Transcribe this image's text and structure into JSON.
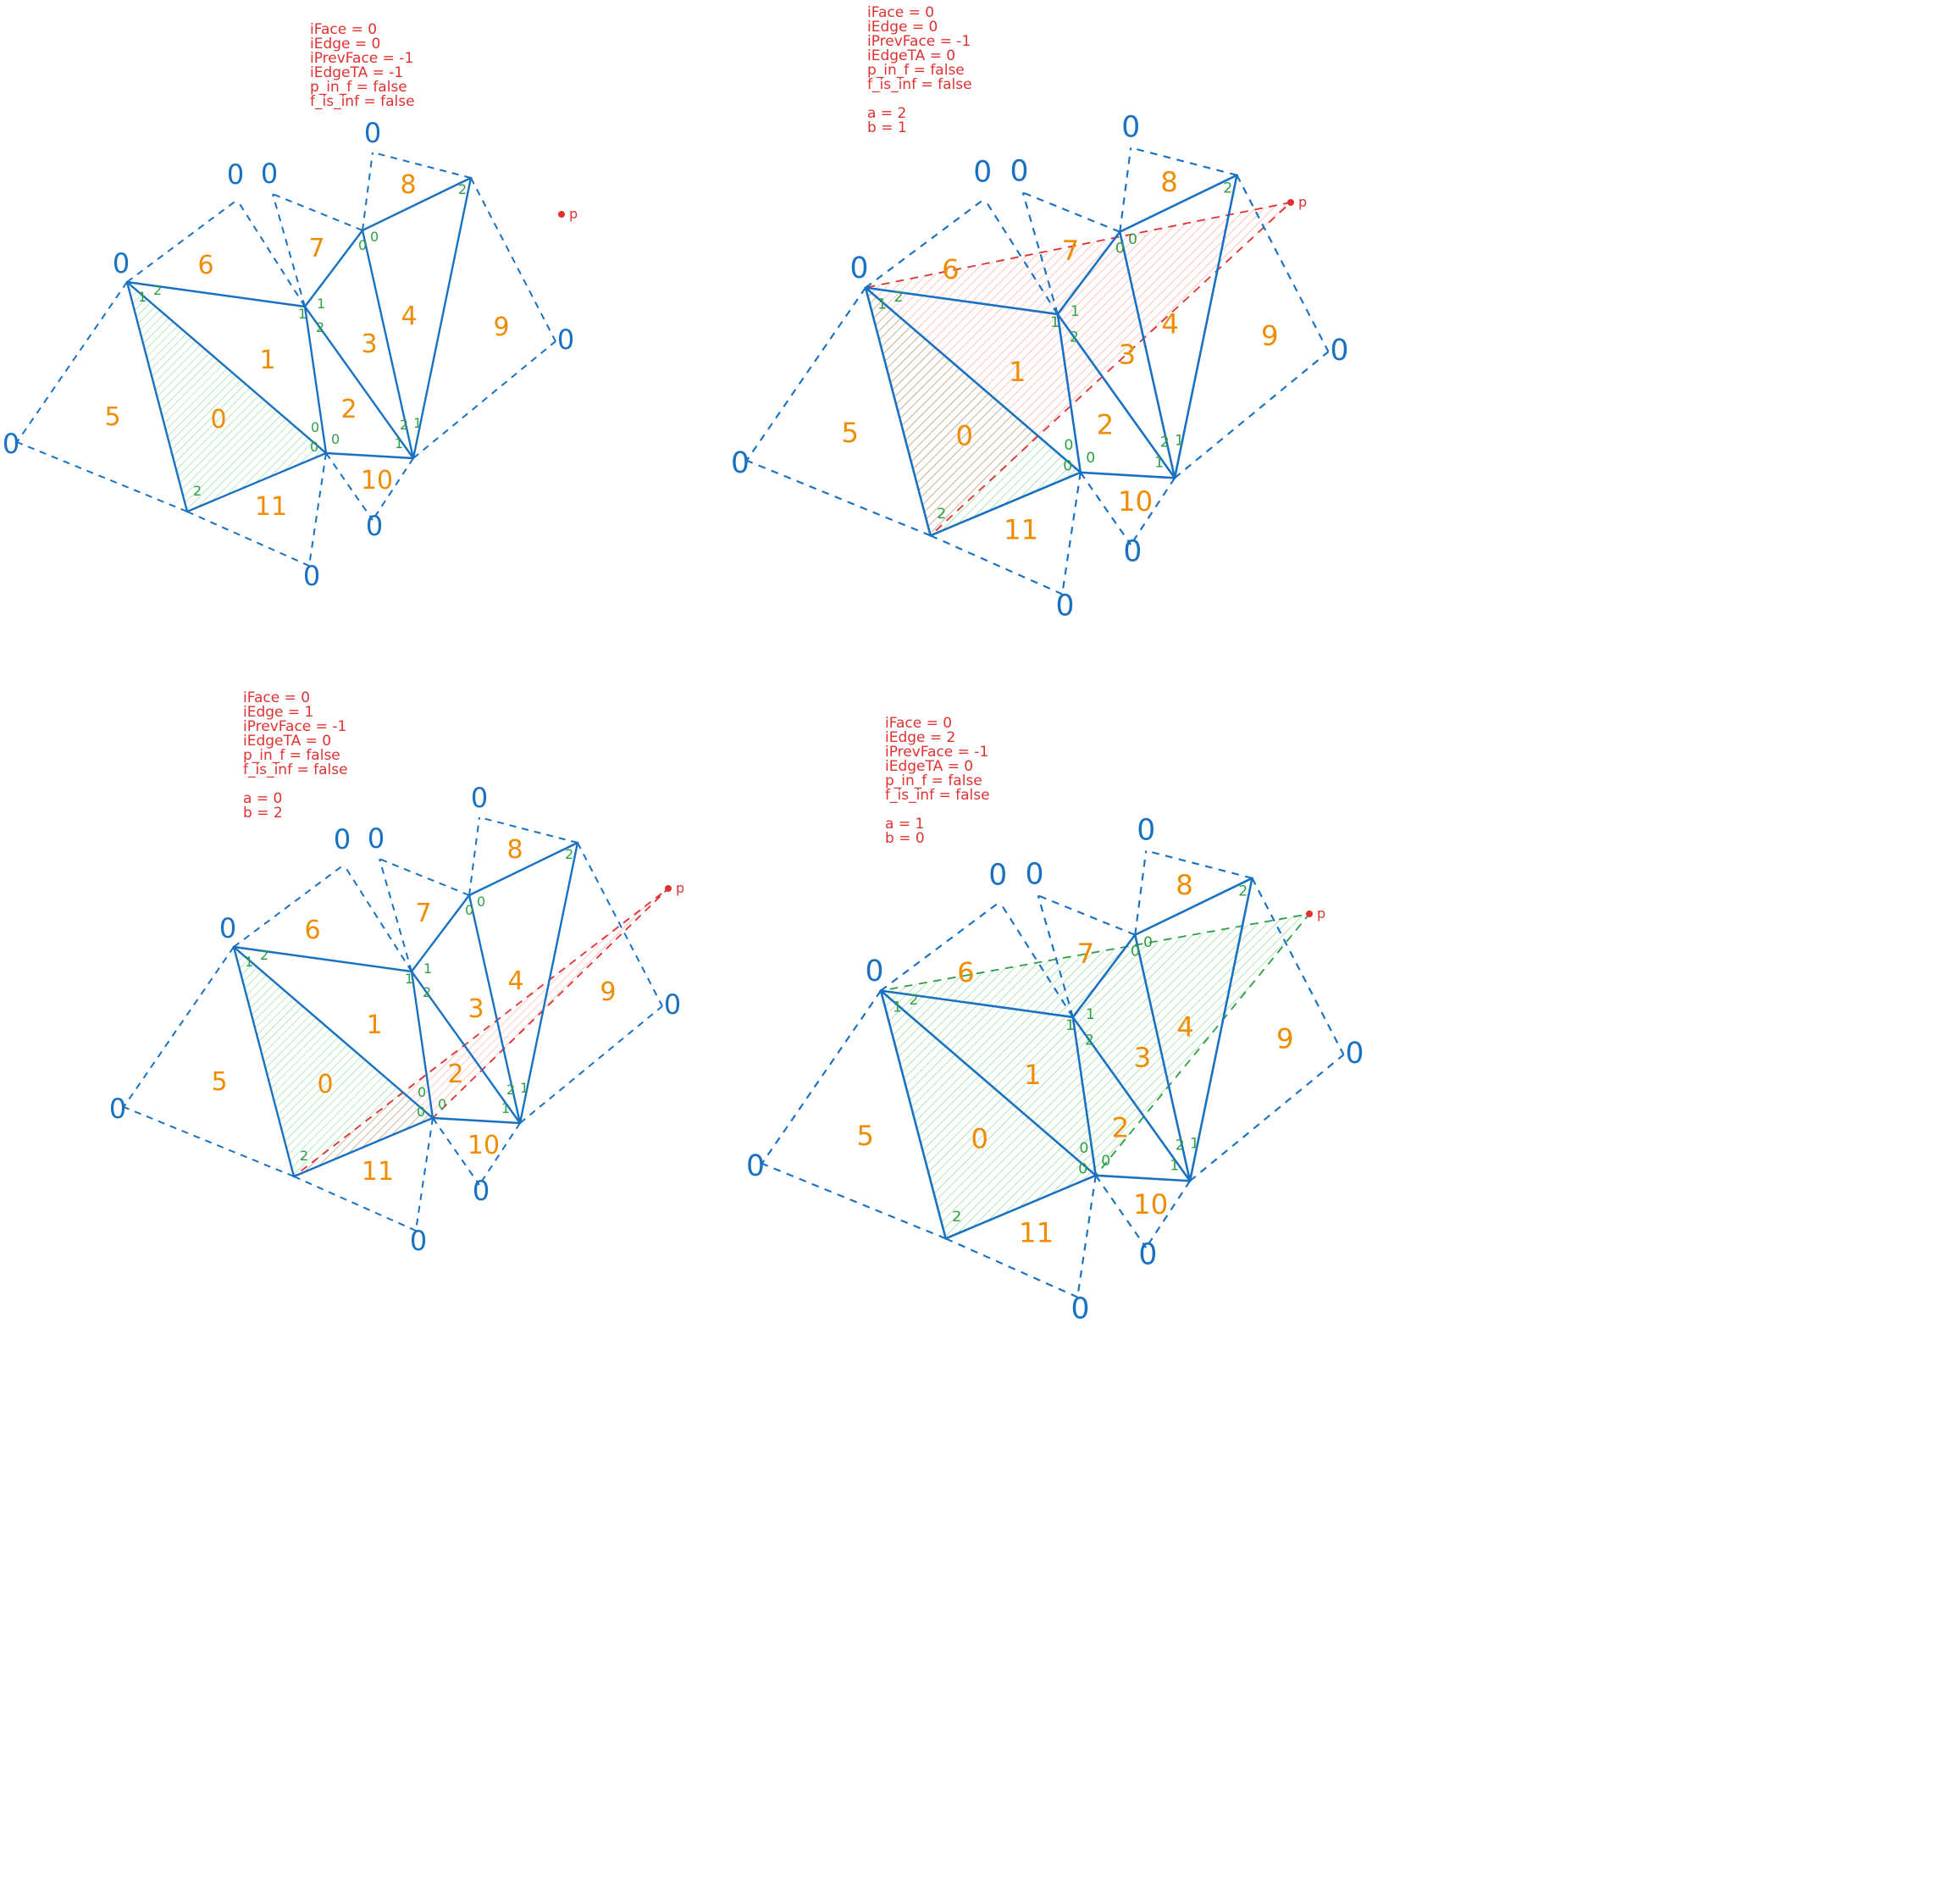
{
  "colors": {
    "edge": "#1971c2",
    "face_label": "#f08c00",
    "edge_index": "#2f9e44",
    "state_text": "#e03131",
    "highlight_green": "#40c057",
    "highlight_red": "#fa5252"
  },
  "infinite_vertex_label": "0",
  "point_label": "p",
  "face_labels": [
    "0",
    "1",
    "2",
    "3",
    "4",
    "5",
    "6",
    "7",
    "8",
    "9",
    "10",
    "11"
  ],
  "panels": [
    {
      "name": "panel-1",
      "state": [
        "iFace = 0",
        "iEdge = 0",
        "iPrevFace = -1",
        "iEdgeTA = -1",
        "p_in_f = false",
        "f_is_inf = false"
      ],
      "ab": [],
      "test_triangle": "none"
    },
    {
      "name": "panel-2",
      "state": [
        "iFace = 0",
        "iEdge = 0",
        "iPrevFace = -1",
        "iEdgeTA = 0",
        "p_in_f = false",
        "f_is_inf = false"
      ],
      "ab": [
        "a = 2",
        "b = 1"
      ],
      "test_triangle": "red"
    },
    {
      "name": "panel-3",
      "state": [
        "iFace = 0",
        "iEdge = 1",
        "iPrevFace = -1",
        "iEdgeTA = 0",
        "p_in_f = false",
        "f_is_inf = false"
      ],
      "ab": [
        "a = 0",
        "b = 2"
      ],
      "test_triangle": "red"
    },
    {
      "name": "panel-4",
      "state": [
        "iFace = 0",
        "iEdge = 2",
        "iPrevFace = -1",
        "iEdgeTA = 0",
        "p_in_f = false",
        "f_is_inf = false"
      ],
      "ab": [
        "a = 1",
        "b = 0"
      ],
      "test_triangle": "green"
    }
  ]
}
